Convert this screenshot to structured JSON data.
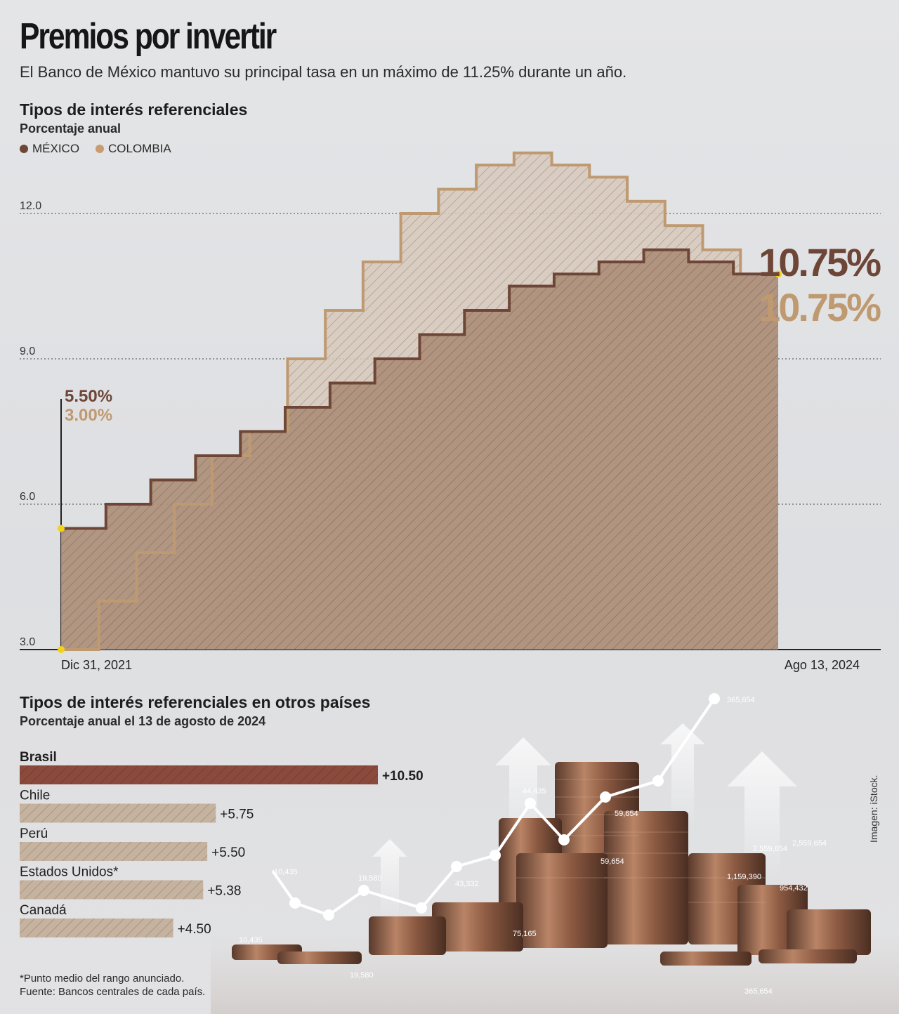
{
  "header": {
    "title": "Premios por invertir",
    "subtitle": "El Banco de México mantuvo su principal tasa en un máximo de 11.25% durante un año."
  },
  "chart_data": [
    {
      "type": "area",
      "title": "Tipos de interés referenciales",
      "subtitle": "Porcentaje anual",
      "legend": [
        "MÉXICO",
        "COLOMBIA"
      ],
      "y_ticks": [
        "12.0",
        "9.0",
        "6.0",
        "3.0"
      ],
      "ylim": [
        3.0,
        12.0
      ],
      "x_labels": [
        "Dic 31, 2021",
        "Ago 13, 2024"
      ],
      "start_labels": {
        "mexico": "5.50%",
        "colombia": "3.00%"
      },
      "end_labels": {
        "mexico": "10.75%",
        "colombia": "10.75%"
      },
      "series": [
        {
          "name": "MÉXICO",
          "color": "#6e4637",
          "values": [
            5.5,
            6.0,
            6.5,
            7.0,
            7.5,
            8.0,
            8.5,
            9.0,
            9.5,
            10.0,
            10.5,
            10.75,
            11.0,
            11.25,
            11.0,
            10.75
          ]
        },
        {
          "name": "COLOMBIA",
          "color": "#bf9a70",
          "values": [
            3.0,
            4.0,
            5.0,
            6.0,
            7.0,
            7.5,
            9.0,
            10.0,
            11.0,
            12.0,
            12.5,
            13.0,
            13.25,
            13.0,
            12.75,
            12.25,
            11.75,
            11.25,
            10.75
          ]
        }
      ]
    },
    {
      "type": "bar",
      "title": "Tipos de interés referenciales en otros países",
      "subtitle": "Porcentaje anual el 13 de agosto de 2024",
      "categories": [
        "Brasil",
        "Chile",
        "Perú",
        "Estados Unidos*",
        "Canadá"
      ],
      "values": [
        10.5,
        5.75,
        5.5,
        5.38,
        4.5
      ],
      "value_labels": [
        "+10.50",
        "+5.75",
        "+5.50",
        "+5.38",
        "+4.50"
      ],
      "colors": {
        "highlight": "#8a4a3c",
        "normal": "#c2ae98"
      }
    }
  ],
  "footnote": {
    "line1": "*Punto medio del rango anunciado.",
    "line2": "Fuente: Bancos centrales de cada país."
  },
  "credit": "Imagen: iStock.",
  "photo_numbers": [
    "10,435",
    "19,580",
    "43,332",
    "44,435",
    "59,654",
    "59,654",
    "365,654",
    "1,159,390",
    "954,432",
    "2,559,654",
    "2,559,654",
    "75,165",
    "10,435",
    "19,580",
    "365,654"
  ]
}
